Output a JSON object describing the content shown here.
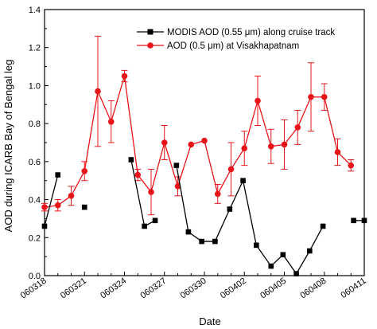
{
  "chart_data": {
    "type": "line",
    "xlabel": "Date",
    "ylabel": "AOD during ICARB Bay of Bengal leg",
    "xlim": [
      0,
      24
    ],
    "ylim": [
      0.0,
      1.4
    ],
    "x_ticks": [
      {
        "x": 0,
        "label": "060318"
      },
      {
        "x": 3,
        "label": "060321"
      },
      {
        "x": 6,
        "label": "060324"
      },
      {
        "x": 9,
        "label": "060327"
      },
      {
        "x": 12,
        "label": "060330"
      },
      {
        "x": 15,
        "label": "060402"
      },
      {
        "x": 18,
        "label": "060405"
      },
      {
        "x": 21,
        "label": "060408"
      },
      {
        "x": 24,
        "label": "060411"
      }
    ],
    "y_ticks": [
      {
        "y": 0.0,
        "label": "0.0"
      },
      {
        "y": 0.2,
        "label": "0.2"
      },
      {
        "y": 0.4,
        "label": "0.4"
      },
      {
        "y": 0.6,
        "label": "0.6"
      },
      {
        "y": 0.8,
        "label": "0.8"
      },
      {
        "y": 1.0,
        "label": "1.0"
      },
      {
        "y": 1.2,
        "label": "1.2"
      },
      {
        "y": 1.4,
        "label": "1.4"
      }
    ],
    "legend_position": "top-right",
    "series": [
      {
        "name": "MODIS AOD (0.55 μm) along cruise track",
        "color": "#000000",
        "marker": "square",
        "segments": [
          [
            [
              0,
              0.26
            ],
            [
              1,
              0.53
            ]
          ],
          [
            [
              3,
              0.36
            ]
          ],
          [
            [
              6.5,
              0.61
            ],
            [
              7.5,
              0.26
            ],
            [
              8.3,
              0.29
            ]
          ],
          [
            [
              9.9,
              0.58
            ],
            [
              10.8,
              0.23
            ],
            [
              11.8,
              0.18
            ],
            [
              12.8,
              0.18
            ],
            [
              13.9,
              0.35
            ],
            [
              14.9,
              0.5
            ],
            [
              15.9,
              0.16
            ],
            [
              17,
              0.05
            ],
            [
              17.9,
              0.11
            ],
            [
              18.9,
              0.01
            ],
            [
              19.9,
              0.13
            ],
            [
              20.9,
              0.26
            ]
          ],
          [
            [
              23.2,
              0.29
            ],
            [
              24,
              0.29
            ]
          ]
        ]
      },
      {
        "name": "AOD (0.5 μm) at Visakhapatnam",
        "color": "#e8141a",
        "marker": "circle",
        "points": [
          {
            "x": 0,
            "y": 0.36,
            "err": 0.02
          },
          {
            "x": 1,
            "y": 0.37,
            "err": 0.03
          },
          {
            "x": 2,
            "y": 0.42,
            "err": 0.05
          },
          {
            "x": 3,
            "y": 0.55,
            "err": 0.05
          },
          {
            "x": 4,
            "y": 0.97,
            "err": 0.29
          },
          {
            "x": 5,
            "y": 0.81,
            "err": 0.11
          },
          {
            "x": 6,
            "y": 1.05,
            "err": 0.03
          },
          {
            "x": 7,
            "y": 0.53,
            "err": 0.03
          },
          {
            "x": 8,
            "y": 0.44,
            "err": 0.12
          },
          {
            "x": 9,
            "y": 0.7,
            "err": 0.09
          },
          {
            "x": 10,
            "y": 0.47,
            "err": 0.05
          },
          {
            "x": 11,
            "y": 0.69,
            "err": 0.0
          },
          {
            "x": 12,
            "y": 0.71,
            "err": 0.0
          },
          {
            "x": 13,
            "y": 0.43,
            "err": 0.05
          },
          {
            "x": 14,
            "y": 0.56,
            "err": 0.14
          },
          {
            "x": 15,
            "y": 0.67,
            "err": 0.09
          },
          {
            "x": 16,
            "y": 0.92,
            "err": 0.13
          },
          {
            "x": 17,
            "y": 0.68,
            "err": 0.09
          },
          {
            "x": 18,
            "y": 0.69,
            "err": 0.13
          },
          {
            "x": 19,
            "y": 0.78,
            "err": 0.09
          },
          {
            "x": 20,
            "y": 0.94,
            "err": 0.18
          },
          {
            "x": 21,
            "y": 0.94,
            "err": 0.07
          },
          {
            "x": 22,
            "y": 0.65,
            "err": 0.07
          },
          {
            "x": 23,
            "y": 0.58,
            "err": 0.03
          }
        ]
      }
    ]
  }
}
